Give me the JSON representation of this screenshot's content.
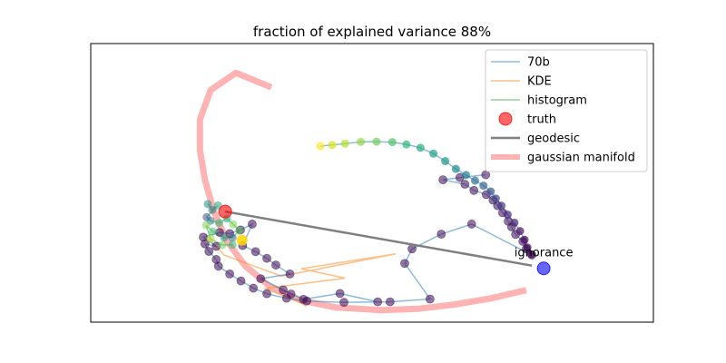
{
  "chart_data": {
    "type": "scatter",
    "title": "fraction of explained variance 88%",
    "xlabel": "",
    "ylabel": "",
    "xlim": [
      0,
      100
    ],
    "ylim": [
      0,
      100
    ],
    "axis_ticks": false,
    "grid": false,
    "legend_placement": "top-right",
    "legend": [
      {
        "label": "70b",
        "kind": "line",
        "color": "#1f77b4"
      },
      {
        "label": "KDE",
        "kind": "line",
        "color": "#ff7f0e"
      },
      {
        "label": "histogram",
        "kind": "line",
        "color": "#2ca02c"
      },
      {
        "label": "truth",
        "kind": "marker",
        "color": "#ff0000"
      },
      {
        "label": "geodesic",
        "kind": "line",
        "color": "#808080"
      },
      {
        "label": "gaussian manifold",
        "kind": "thickline",
        "color": "#ffb3b3"
      }
    ],
    "annotations": [
      {
        "text": "ignorance",
        "x": 80.5,
        "y": 23.6
      }
    ],
    "series": [
      {
        "name": "gaussian manifold",
        "kind": "thickline",
        "color": "#ffb3b3",
        "points": [
          [
            32.1,
            84.3
          ],
          [
            25.8,
            89.5
          ],
          [
            21.3,
            83.3
          ],
          [
            19.4,
            72.7
          ],
          [
            19.4,
            61.8
          ],
          [
            20.3,
            50.9
          ],
          [
            21.9,
            39.7
          ],
          [
            24.2,
            29.2
          ],
          [
            27.4,
            20.3
          ],
          [
            31.9,
            12.7
          ],
          [
            37.4,
            7.8
          ],
          [
            43.5,
            5.3
          ],
          [
            51.6,
            4.3
          ],
          [
            58.1,
            4.8
          ],
          [
            64.5,
            6.3
          ],
          [
            71.0,
            8.5
          ],
          [
            77.4,
            11.5
          ],
          [
            77.4,
            11.5
          ]
        ]
      },
      {
        "name": "geodesic",
        "kind": "line",
        "color": "#808080",
        "points": [
          [
            23.9,
            39.7
          ],
          [
            78.4,
            20.3
          ]
        ]
      },
      {
        "name": "70b",
        "kind": "points",
        "color": "#1f77b4",
        "line_color": "#1f77b4",
        "points": [
          [
            70.2,
            52.9
          ],
          [
            65.6,
            51.9
          ],
          [
            62.6,
            51.1
          ],
          [
            66.5,
            49.5
          ],
          [
            68.1,
            47.3
          ],
          [
            70.3,
            45.8
          ],
          [
            71.5,
            43.8
          ],
          [
            72.3,
            41.8
          ],
          [
            73.2,
            39.3
          ],
          [
            74.2,
            36.2
          ],
          [
            74.8,
            34.2
          ],
          [
            75.5,
            31.5
          ],
          [
            76.8,
            29.0
          ],
          [
            77.4,
            26.3
          ],
          [
            78.4,
            24.1
          ],
          [
            67.7,
            35.2
          ],
          [
            62.3,
            31.6
          ],
          [
            57.1,
            26.3
          ],
          [
            55.8,
            21.1
          ],
          [
            60.3,
            8.3
          ],
          [
            53.2,
            7.3
          ],
          [
            45.0,
            7.1
          ],
          [
            38.4,
            7.6
          ],
          [
            34.8,
            8.6
          ],
          [
            31.3,
            10.2
          ],
          [
            28.9,
            12.2
          ],
          [
            26.7,
            14.8
          ],
          [
            24.7,
            17.3
          ],
          [
            22.7,
            20.1
          ],
          [
            22.3,
            22.5
          ],
          [
            21.0,
            25.4
          ],
          [
            20.3,
            28.1
          ],
          [
            22.3,
            27.2
          ],
          [
            20.0,
            30.5
          ],
          [
            22.9,
            32.2
          ],
          [
            24.7,
            31.8
          ],
          [
            26.6,
            33.1
          ],
          [
            28.7,
            35.2
          ],
          [
            27.0,
            27.5
          ],
          [
            29.3,
            25.3
          ],
          [
            31.3,
            22.9
          ],
          [
            32.9,
            20.5
          ],
          [
            35.4,
            17.3
          ],
          [
            30.2,
            15.6
          ],
          [
            34.2,
            11.6
          ],
          [
            35.6,
            10.1
          ],
          [
            37.8,
            8.2
          ],
          [
            44.3,
            10.3
          ],
          [
            51.0,
            7.3
          ]
        ]
      },
      {
        "name": "KDE",
        "kind": "line",
        "color": "#ff7f0e",
        "points": [
          [
            20.5,
            31.2
          ],
          [
            23.7,
            24.1
          ],
          [
            33.9,
            16.5
          ],
          [
            54.2,
            24.5
          ],
          [
            37.4,
            19.2
          ],
          [
            45.2,
            15.8
          ],
          [
            31.0,
            12.1
          ],
          [
            37.2,
            7.1
          ],
          [
            38.3,
            5.6
          ]
        ]
      },
      {
        "name": "histogram",
        "kind": "points",
        "color": "#2ca02c",
        "line_color": "#2ca02c",
        "points": [
          [
            20.8,
            42.4
          ],
          [
            21.6,
            40.3
          ],
          [
            22.6,
            41.9
          ],
          [
            20.6,
            37.7
          ],
          [
            21.3,
            36.4
          ],
          [
            22.8,
            35.6
          ],
          [
            24.2,
            37.2
          ],
          [
            25.3,
            35.1
          ],
          [
            26.4,
            32.9
          ],
          [
            25.2,
            30.3
          ],
          [
            23.7,
            30.4
          ],
          [
            21.7,
            32.5
          ],
          [
            20.5,
            34.8
          ],
          [
            21.3,
            29.9
          ],
          [
            23.4,
            27.7
          ],
          [
            25.2,
            27.8
          ]
        ]
      },
      {
        "name": "upper trajectory",
        "kind": "points",
        "color": "#46307a",
        "line_color": "#1f77b4",
        "points": [
          [
            40.8,
            63.2
          ],
          [
            42.9,
            63.6
          ],
          [
            45.2,
            64.1
          ],
          [
            48.0,
            64.7
          ],
          [
            50.8,
            64.8
          ],
          [
            53.6,
            64.6
          ],
          [
            56.1,
            63.8
          ],
          [
            58.6,
            62.6
          ],
          [
            60.9,
            60.5
          ],
          [
            63.0,
            57.8
          ],
          [
            64.9,
            55.0
          ],
          [
            66.7,
            52.8
          ],
          [
            68.3,
            50.8
          ],
          [
            69.8,
            49.0
          ],
          [
            71.1,
            46.9
          ],
          [
            72.0,
            44.4
          ],
          [
            73.0,
            41.8
          ],
          [
            74.1,
            38.6
          ],
          [
            75.3,
            35.7
          ],
          [
            76.3,
            32.7
          ],
          [
            77.1,
            29.6
          ],
          [
            77.6,
            26.8
          ],
          [
            78.3,
            24.4
          ]
        ]
      },
      {
        "name": "truth",
        "kind": "marker",
        "color": "#ff0000",
        "points": [
          [
            23.9,
            39.7
          ]
        ]
      },
      {
        "name": "ignorance point",
        "kind": "marker",
        "color": "#0000ff",
        "points": [
          [
            80.5,
            19.3
          ]
        ]
      },
      {
        "name": "histogram endpoint",
        "kind": "marker",
        "color": "#ffd700",
        "points": [
          [
            26.9,
            29.4
          ]
        ]
      }
    ]
  }
}
